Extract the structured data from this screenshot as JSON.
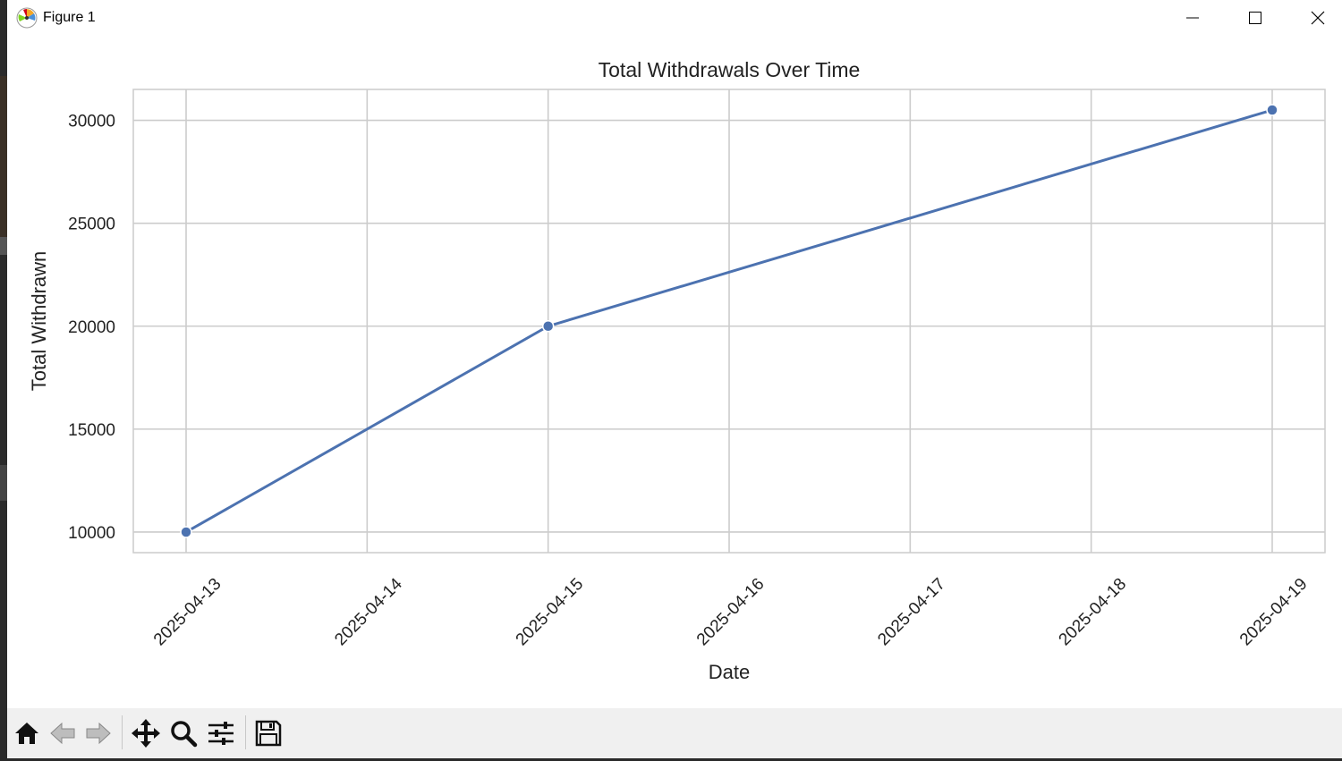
{
  "window": {
    "title": "Figure 1"
  },
  "colors": {
    "line": "#4c72b0",
    "grid": "#cccccc",
    "spine": "#cccccc",
    "toolbar_bg": "#f0f0f0"
  },
  "toolbar": {
    "buttons": [
      {
        "name": "home-button",
        "icon": "home-icon"
      },
      {
        "name": "back-button",
        "icon": "back-arrow-icon"
      },
      {
        "name": "forward-button",
        "icon": "forward-arrow-icon"
      },
      {
        "name": "pan-button",
        "icon": "move-icon"
      },
      {
        "name": "zoom-button",
        "icon": "magnifier-icon"
      },
      {
        "name": "configure-subplots-button",
        "icon": "sliders-icon"
      },
      {
        "name": "save-button",
        "icon": "floppy-disk-icon"
      }
    ]
  },
  "chart_data": {
    "type": "line",
    "title": "Total Withdrawals Over Time",
    "xlabel": "Date",
    "ylabel": "Total Withdrawn",
    "x_ticks": [
      "2025-04-13",
      "2025-04-14",
      "2025-04-15",
      "2025-04-16",
      "2025-04-17",
      "2025-04-18",
      "2025-04-19"
    ],
    "y_ticks": [
      "10000",
      "15000",
      "20000",
      "25000",
      "30000"
    ],
    "xlim": [
      "2025-04-12 17:00",
      "2025-04-19 07:00"
    ],
    "ylim": [
      9000,
      31500
    ],
    "grid": true,
    "legend": "none",
    "series": [
      {
        "x": [
          "2025-04-13",
          "2025-04-15",
          "2025-04-19"
        ],
        "y": [
          10000,
          20000,
          30500
        ],
        "marker": "circle"
      }
    ]
  }
}
